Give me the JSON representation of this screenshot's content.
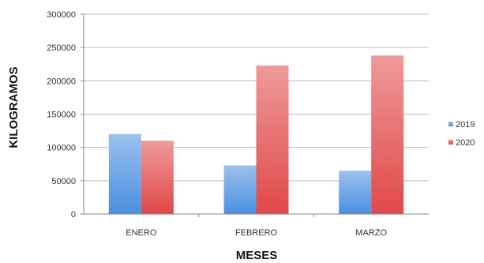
{
  "chart_data": {
    "type": "bar",
    "categories": [
      "ENERO",
      "FEBRERO",
      "MARZO"
    ],
    "series": [
      {
        "name": "2019",
        "values": [
          120000,
          73000,
          65000
        ],
        "color": "#4a8fe0"
      },
      {
        "name": "2020",
        "values": [
          110000,
          223000,
          238000
        ],
        "color": "#e04848"
      }
    ],
    "title": "",
    "xlabel": "MESES",
    "ylabel": "KILOGRAMOS",
    "ylim": [
      0,
      300000
    ],
    "yticks": [
      0,
      50000,
      100000,
      150000,
      200000,
      250000,
      300000
    ],
    "ytick_labels": [
      "0",
      "50000",
      "100000",
      "150000",
      "200000",
      "250000",
      "300000"
    ],
    "grid": true,
    "legend_position": "right"
  }
}
